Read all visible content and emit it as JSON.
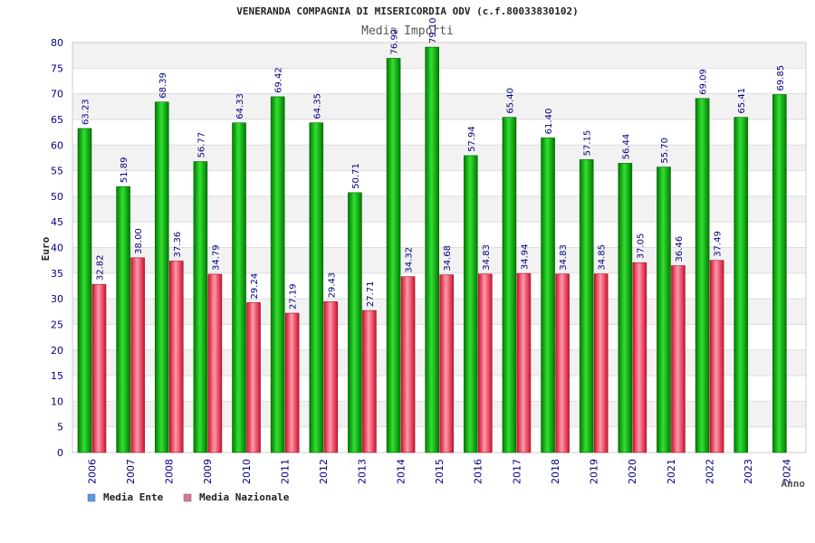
{
  "chart_data": {
    "type": "bar",
    "title": "VENERANDA COMPAGNIA DI MISERICORDIA ODV (c.f.80033830102)",
    "subtitle": "Media Importi",
    "xlabel": "Anno",
    "ylabel": "Euro",
    "ylim": [
      0,
      80
    ],
    "ytick_step": 5,
    "categories": [
      "2006",
      "2007",
      "2008",
      "2009",
      "2010",
      "2011",
      "2012",
      "2013",
      "2014",
      "2015",
      "2016",
      "2017",
      "2018",
      "2019",
      "2020",
      "2021",
      "2022",
      "2023",
      "2024"
    ],
    "series": [
      {
        "name": "Media Ente",
        "color": "#00aa00",
        "values": [
          63.23,
          51.89,
          68.39,
          56.77,
          64.33,
          69.42,
          64.35,
          50.71,
          76.92,
          79.1,
          57.94,
          65.4,
          61.4,
          57.15,
          56.44,
          55.7,
          69.09,
          65.41,
          69.85
        ],
        "labels": [
          "63.23",
          "51.89",
          "68.39",
          "56.77",
          "64.33",
          "69.42",
          "64.35",
          "50.71",
          "76.92",
          "79.10",
          "57.94",
          "65.40",
          "61.40",
          "57.15",
          "56.44",
          "55.70",
          "69.09",
          "65.41",
          "69.85"
        ]
      },
      {
        "name": "Media Nazionale",
        "color": "#dd3344",
        "values": [
          32.82,
          38.0,
          37.36,
          34.79,
          29.24,
          27.19,
          29.43,
          27.71,
          34.32,
          34.68,
          34.83,
          34.94,
          34.83,
          34.85,
          37.05,
          36.46,
          37.49,
          null,
          null
        ],
        "labels": [
          "32.82",
          "38.00",
          "37.36",
          "34.79",
          "29.24",
          "27.19",
          "29.43",
          "27.71",
          "34.32",
          "34.68",
          "34.83",
          "34.94",
          "34.83",
          "34.85",
          "37.05",
          "36.46",
          "37.49",
          null,
          null
        ]
      }
    ],
    "legend": [
      {
        "label": "Media Ente",
        "swatch_color": "#5599ee"
      },
      {
        "label": "Media Nazionale",
        "swatch_color": "#dd7799"
      }
    ],
    "legend_position": "bottom-left",
    "grid": true
  }
}
